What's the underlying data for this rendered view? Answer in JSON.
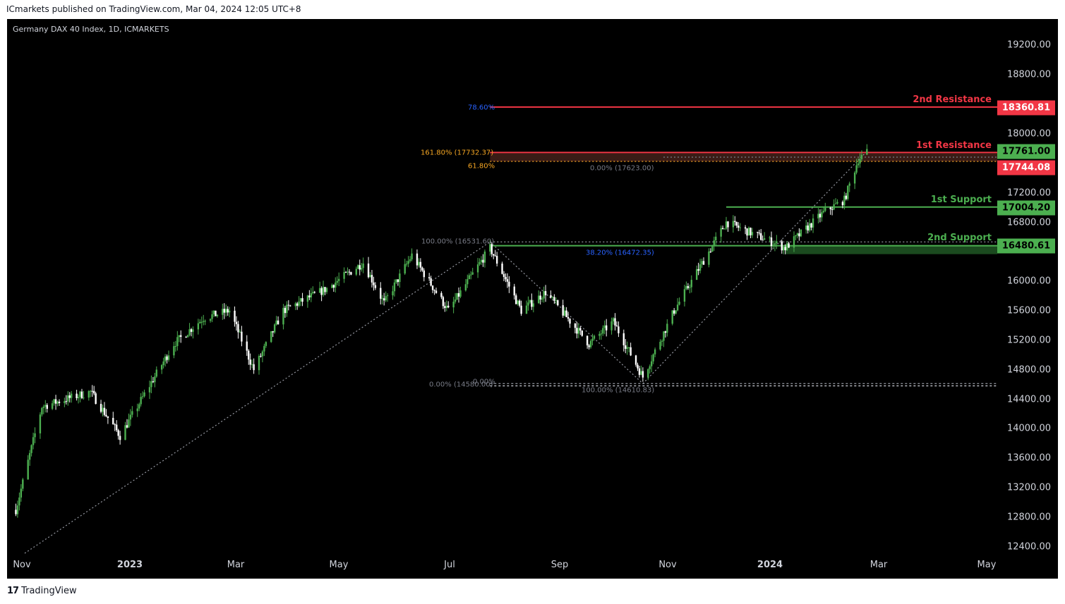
{
  "header": {
    "published": "ICmarkets published on TradingView.com, Mar 04, 2024 12:05 UTC+8"
  },
  "symbol": "Germany DAX 40 Index, 1D, ICMARKETS",
  "footer": {
    "brand": "TradingView",
    "logo_icon": "tradingview-logo-icon"
  },
  "colors": {
    "background": "#000000",
    "up": "#4caf50",
    "down": "#ffffff",
    "resistance": "#f23645",
    "support": "#4caf50",
    "fib_orange": "#f5a623",
    "fib_blue": "#2962ff",
    "fib_gray": "#787b86"
  },
  "chart_data": {
    "type": "candlestick",
    "title": "Germany DAX 40 Index, 1D, ICMARKETS",
    "y_axis": {
      "ticks": [
        "19200.00",
        "18800.00",
        "18000.00",
        "17200.00",
        "16800.00",
        "16000.00",
        "15600.00",
        "15200.00",
        "14800.00",
        "14400.00",
        "14000.00",
        "13600.00",
        "13200.00",
        "12800.00",
        "12400.00"
      ],
      "range": [
        12250,
        19400
      ]
    },
    "x_axis": {
      "labels": [
        "Nov",
        "2023",
        "Mar",
        "May",
        "Jul",
        "Sep",
        "Nov",
        "2024",
        "Mar",
        "May"
      ],
      "bold": [
        "2023",
        "2024"
      ],
      "range": [
        "2022-10-30",
        "2024-05-16"
      ]
    },
    "key_points": [
      {
        "date": "2022-10-31",
        "close": 12900
      },
      {
        "date": "2022-11-15",
        "close": 14300
      },
      {
        "date": "2022-12-13",
        "close": 14500
      },
      {
        "date": "2022-12-30",
        "close": 13900
      },
      {
        "date": "2023-01-30",
        "close": 15150
      },
      {
        "date": "2023-02-16",
        "close": 15500
      },
      {
        "date": "2023-03-03",
        "close": 15600
      },
      {
        "date": "2023-03-17",
        "close": 14800
      },
      {
        "date": "2023-04-03",
        "close": 15600
      },
      {
        "date": "2023-04-28",
        "close": 15900
      },
      {
        "date": "2023-05-19",
        "close": 16250
      },
      {
        "date": "2023-05-31",
        "close": 15700
      },
      {
        "date": "2023-06-16",
        "close": 16350
      },
      {
        "date": "2023-07-07",
        "close": 15600
      },
      {
        "date": "2023-07-31",
        "close": 16450
      },
      {
        "date": "2023-08-18",
        "close": 15600
      },
      {
        "date": "2023-09-01",
        "close": 15850
      },
      {
        "date": "2023-09-26",
        "close": 15150
      },
      {
        "date": "2023-10-10",
        "close": 15450
      },
      {
        "date": "2023-10-27",
        "close": 14700
      },
      {
        "date": "2023-11-14",
        "close": 15600
      },
      {
        "date": "2023-12-14",
        "close": 16800
      },
      {
        "date": "2024-01-17",
        "close": 16450
      },
      {
        "date": "2024-02-09",
        "close": 16950
      },
      {
        "date": "2024-02-20",
        "close": 17100
      },
      {
        "date": "2024-02-28",
        "close": 17650
      },
      {
        "date": "2024-03-04",
        "close": 17744
      }
    ],
    "levels": [
      {
        "name": "2nd Resistance",
        "value": 18360.81,
        "label": "18360.81",
        "kind": "resistance"
      },
      {
        "name": "1st Resistance",
        "value": 17744.08,
        "label": "17744.08",
        "kind": "resistance"
      },
      {
        "name": "1st Support",
        "value": 17004.2,
        "label": "17004.20",
        "kind": "support"
      },
      {
        "name": "2nd Support",
        "value": 16480.61,
        "label": "16480.61",
        "kind": "support"
      }
    ],
    "last_price": {
      "value": 17761.0,
      "label": "17761.00"
    },
    "fib_labels": {
      "f7860": "78.60%",
      "f16180": "161.80% (17732.37)",
      "f6180": "61.80%",
      "f0_17623": "0.00% (17623.00)",
      "f100_16531": "100.00% (16531.60)",
      "f3820": "38.20% (16472.35)",
      "f0_a": "0.00%",
      "f0_b": "0.00% (14580.00)",
      "f100_14610": "100.00% (14610.83)"
    },
    "grid": false,
    "legend": "none"
  }
}
